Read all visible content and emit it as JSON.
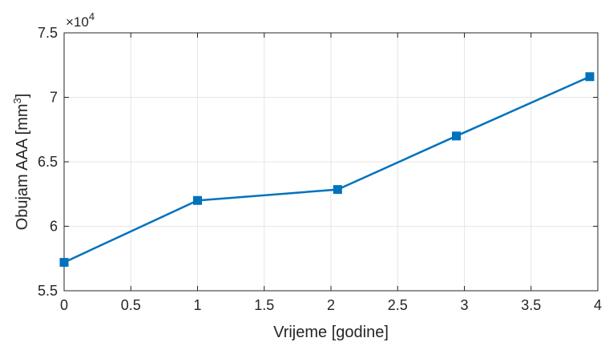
{
  "chart_data": {
    "type": "line",
    "title": "",
    "xlabel": "Vrijeme [godine]",
    "ylabel_prefix": "Obujam AAA [mm",
    "ylabel_sup": "3",
    "ylabel_suffix": "]",
    "y_multiplier_prefix": "×10",
    "y_multiplier_exp": "4",
    "xlim": [
      0,
      4
    ],
    "ylim": [
      55000,
      75000
    ],
    "xticks": [
      0,
      0.5,
      1,
      1.5,
      2,
      2.5,
      3,
      3.5,
      4
    ],
    "xtick_labels": [
      "0",
      "0.5",
      "1",
      "1.5",
      "2",
      "2.5",
      "3",
      "3.5",
      "4"
    ],
    "yticks": [
      55000,
      60000,
      65000,
      70000,
      75000
    ],
    "ytick_labels": [
      "5.5",
      "6",
      "6.5",
      "7",
      "7.5"
    ],
    "grid": true,
    "series": [
      {
        "color": "#0072BD",
        "marker": "square",
        "x": [
          0,
          1.0,
          2.05,
          2.94,
          3.94
        ],
        "y": [
          57200,
          62000,
          62850,
          67000,
          71600
        ]
      }
    ]
  }
}
